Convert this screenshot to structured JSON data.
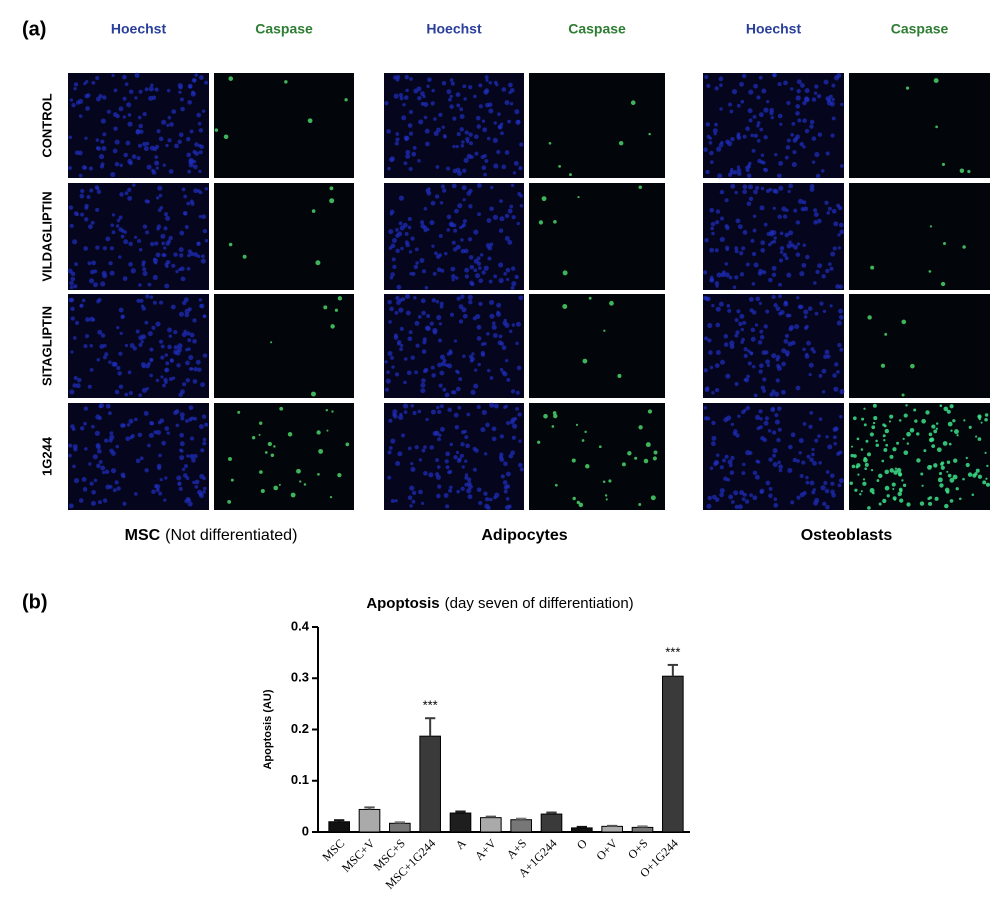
{
  "panel_a": {
    "label": "(a)",
    "stains": [
      "Hoechst",
      "Caspase"
    ],
    "rows": [
      "CONTROL",
      "VILDAGLIPTIN",
      "SITAGLIPTIN",
      "1G244"
    ],
    "groups": [
      {
        "name": "MSC",
        "note": "(Not differentiated)"
      },
      {
        "name": "Adipocytes"
      },
      {
        "name": "Osteoblasts"
      }
    ]
  },
  "panel_b": {
    "label": "(b)"
  },
  "chart_data": {
    "type": "bar",
    "title": "Apoptosis",
    "subtitle": "(day seven of differentiation)",
    "y_label": "Apoptosis (AU)",
    "categories": [
      "MSC",
      "MSC+V",
      "MSC+S",
      "MSC+1G244",
      "A",
      "A+V",
      "A+S",
      "A+1G244",
      "O",
      "O+V",
      "O+S",
      "O+1G244"
    ],
    "values": [
      0.02,
      0.044,
      0.017,
      0.187,
      0.037,
      0.028,
      0.024,
      0.035,
      0.008,
      0.011,
      0.009,
      0.304
    ],
    "errors": [
      0.003,
      0.004,
      0.002,
      0.035,
      0.003,
      0.002,
      0.002,
      0.003,
      0.002,
      0.001,
      0.002,
      0.022
    ],
    "colors": [
      "#111111",
      "#aaaaaa",
      "#777777",
      "#3a3a3a",
      "#1e1e1e",
      "#aaaaaa",
      "#777777",
      "#3a3a3a",
      "#111111",
      "#aaaaaa",
      "#777777",
      "#3a3a3a"
    ],
    "annotations": [
      {
        "category": "MSC+1G244",
        "text": "***"
      },
      {
        "category": "O+1G244",
        "text": "***"
      }
    ],
    "ylim": [
      0,
      0.4
    ],
    "yticks": [
      0,
      0.1,
      0.2,
      0.3,
      0.4
    ]
  }
}
